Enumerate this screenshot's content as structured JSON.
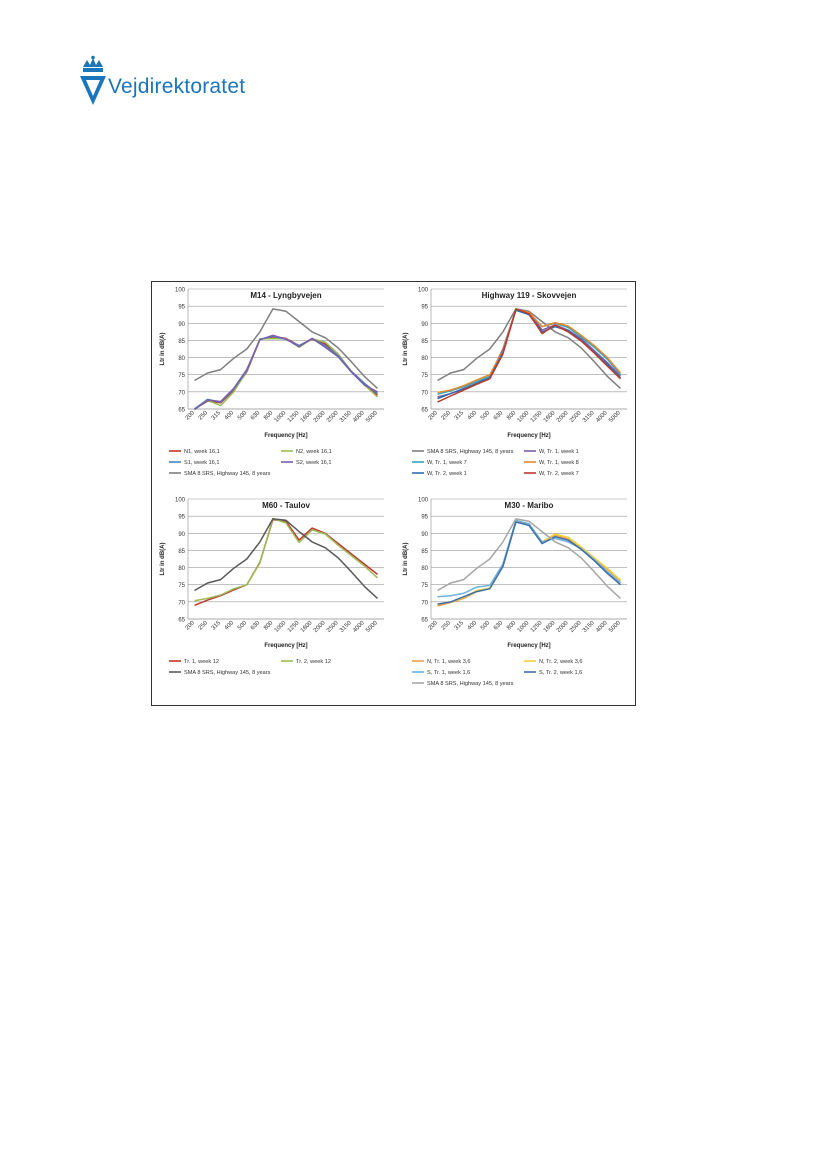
{
  "logo": {
    "text": "Vejdirektoratet",
    "color": "#1b75bb"
  },
  "chart_data": [
    {
      "type": "line",
      "title": "M14 - Lyngbyvejen",
      "xlabel": "Frequency [Hz]",
      "ylabel": "Ltr in dB(A)",
      "ylim": [
        65,
        100
      ],
      "yticks": [
        "65",
        "70",
        "75",
        "80",
        "85",
        "90",
        "95",
        "100"
      ],
      "categories": [
        "200",
        "250",
        "315",
        "400",
        "500",
        "630",
        "800",
        "1000",
        "1250",
        "1600",
        "2000",
        "2500",
        "3150",
        "4000",
        "5000"
      ],
      "grid": true,
      "legend_position": "bottom",
      "series": [
        {
          "name": "N1, week 16,1",
          "color": "#c0392b",
          "values": [
            65,
            67.3,
            66.8,
            70.5,
            75.8,
            85.3,
            86,
            85.6,
            83.5,
            85.3,
            84,
            80.5,
            76,
            72.5,
            69
          ]
        },
        {
          "name": "N2, week 16,1",
          "color": "#9bbb59",
          "values": [
            65,
            67.5,
            66,
            70,
            76,
            85.5,
            85.5,
            85.5,
            83,
            85.5,
            84.5,
            81,
            76,
            72,
            68.5
          ]
        },
        {
          "name": "S1, week 16,1",
          "color": "#4f81bd",
          "values": [
            65,
            67.8,
            67,
            70.8,
            76.2,
            85.3,
            86.2,
            85.3,
            83.5,
            85.5,
            83.5,
            80.5,
            76,
            72.5,
            69.5
          ]
        },
        {
          "name": "S2, week 16,1",
          "color": "#7b5fa8",
          "values": [
            64.8,
            67.6,
            67.2,
            71,
            76.5,
            85.2,
            86.5,
            85.4,
            83.2,
            85.6,
            83,
            80.2,
            75.8,
            72,
            70
          ]
        },
        {
          "name": "SMA 8 SRS, Highway 145, 8 years",
          "color": "#7f7f7f",
          "values": [
            73.3,
            75.5,
            76.5,
            79.8,
            82.5,
            87.5,
            94.2,
            93.5,
            90.5,
            87.5,
            85.8,
            82.8,
            78.8,
            74.5,
            71
          ]
        }
      ]
    },
    {
      "type": "line",
      "title": "Highway 119 - Skovvejen",
      "xlabel": "Frequency [Hz]",
      "ylabel": "Ltr in dB(A)",
      "ylim": [
        65,
        100
      ],
      "yticks": [
        "65",
        "70",
        "75",
        "80",
        "85",
        "90",
        "95",
        "100"
      ],
      "categories": [
        "200",
        "250",
        "315",
        "400",
        "500",
        "630",
        "800",
        "1000",
        "1250",
        "1600",
        "2000",
        "2500",
        "3150",
        "4000",
        "5000"
      ],
      "grid": true,
      "legend_position": "bottom",
      "series": [
        {
          "name": "SMA 8 SRS, Highway 145, 8 years",
          "color": "#7f7f7f",
          "values": [
            73.3,
            75.5,
            76.5,
            79.8,
            82.5,
            87.5,
            94.2,
            93.5,
            90.5,
            87.5,
            85.8,
            82.8,
            78.8,
            74.5,
            71
          ]
        },
        {
          "name": "W, Tr. 1, week 1",
          "color": "#7b5fa8",
          "values": [
            68.5,
            69.5,
            71,
            72.5,
            74.5,
            82.5,
            94,
            93.2,
            88,
            89.5,
            88,
            85.5,
            82,
            78.5,
            74.5
          ]
        },
        {
          "name": "W, Tr. 1, week 7",
          "color": "#31a6b8",
          "values": [
            69.3,
            70.3,
            71.5,
            73,
            74.5,
            82,
            94,
            93,
            89,
            90,
            88.8,
            86,
            83,
            79.5,
            75
          ]
        },
        {
          "name": "W, Tr. 1, week 8",
          "color": "#e8892b",
          "values": [
            69.8,
            70.5,
            71.8,
            73.5,
            75,
            82,
            94,
            93.2,
            89,
            90.2,
            89.2,
            86.5,
            83.5,
            80,
            75.5
          ]
        },
        {
          "name": "W, Tr. 2, week 1",
          "color": "#2c6fb0",
          "values": [
            68,
            69.5,
            70.8,
            72.5,
            74,
            81.5,
            93.8,
            92.5,
            87.5,
            89,
            87.8,
            85,
            81.5,
            78,
            74
          ]
        },
        {
          "name": "W, Tr. 2, week 7",
          "color": "#c0392b",
          "values": [
            67,
            68.8,
            70.5,
            72.2,
            73.8,
            81,
            94.2,
            92.8,
            87,
            89.5,
            87.5,
            84.8,
            81.3,
            77.5,
            73.8
          ]
        }
      ]
    },
    {
      "type": "line",
      "title": "M60 - Taulov",
      "xlabel": "Frequency [Hz]",
      "ylabel": "Ltr in dB(A)",
      "ylim": [
        65,
        100
      ],
      "yticks": [
        "65",
        "70",
        "75",
        "80",
        "85",
        "90",
        "95",
        "100"
      ],
      "categories": [
        "200",
        "250",
        "315",
        "400",
        "500",
        "630",
        "800",
        "1000",
        "1250",
        "1600",
        "2000",
        "2500",
        "3150",
        "4000",
        "5000"
      ],
      "grid": true,
      "legend_position": "bottom",
      "series": [
        {
          "name": "Tr. 1, week 12",
          "color": "#c0392b",
          "values": [
            69,
            70.5,
            71.8,
            73.5,
            75,
            81.5,
            94,
            93.5,
            88,
            91.5,
            90,
            87,
            84,
            81,
            78
          ]
        },
        {
          "name": "Tr. 2, week 12",
          "color": "#9bbb59",
          "values": [
            70.3,
            71,
            72,
            73.8,
            75,
            81.3,
            94.3,
            93,
            87.3,
            91,
            89.8,
            86.5,
            83.5,
            80.5,
            77
          ]
        },
        {
          "name": "SMA 8 SRS, Highway 145, 8 years",
          "color": "#595959",
          "values": [
            73.3,
            75.5,
            76.5,
            79.8,
            82.5,
            87.5,
            94.2,
            93.8,
            90.5,
            87.5,
            85.8,
            82.8,
            78.8,
            74.5,
            71
          ]
        }
      ]
    },
    {
      "type": "line",
      "title": "M30 - Maribo",
      "xlabel": "Frequency [Hz]",
      "ylabel": "Ltr in dB(A)",
      "ylim": [
        65,
        100
      ],
      "yticks": [
        "65",
        "70",
        "75",
        "80",
        "85",
        "90",
        "95",
        "100"
      ],
      "categories": [
        "200",
        "250",
        "315",
        "400",
        "500",
        "630",
        "800",
        "1000",
        "1250",
        "1600",
        "2000",
        "2500",
        "3150",
        "4000",
        "5000"
      ],
      "grid": true,
      "legend_position": "bottom",
      "series": [
        {
          "name": "N, Tr. 1, week 3,6",
          "color": "#f0a04b",
          "values": [
            68.8,
            69.8,
            71,
            73,
            74,
            80.5,
            93.5,
            92.5,
            87.5,
            89.5,
            88.3,
            85.8,
            82.5,
            79.5,
            76
          ]
        },
        {
          "name": "N, Tr. 2, week 3,6",
          "color": "#f2d13c",
          "values": [
            69.3,
            70,
            71.3,
            73.3,
            74,
            80.8,
            93.5,
            92.5,
            87.5,
            89.8,
            88.8,
            86,
            82.8,
            79.8,
            76.3
          ]
        },
        {
          "name": "S, Tr. 1, week 1,6",
          "color": "#6fb1e0",
          "values": [
            71.5,
            71.8,
            72.5,
            74.3,
            74.8,
            81,
            93.8,
            92.8,
            87.5,
            88.5,
            87.5,
            85.5,
            82.3,
            78.8,
            75.5
          ]
        },
        {
          "name": "S, Tr. 2, week 1,6",
          "color": "#3d6fa8",
          "values": [
            69.3,
            70,
            71.5,
            73,
            73.8,
            80.3,
            93.3,
            92.3,
            87,
            89,
            88,
            85.3,
            82,
            78.3,
            75
          ]
        },
        {
          "name": "SMA 8 SRS, Highway 145, 8 years",
          "color": "#a6a6a6",
          "values": [
            73.3,
            75.5,
            76.5,
            79.8,
            82.5,
            87.5,
            94.2,
            93.5,
            90.5,
            87.5,
            85.8,
            82.8,
            78.8,
            74.5,
            71
          ]
        }
      ]
    }
  ]
}
